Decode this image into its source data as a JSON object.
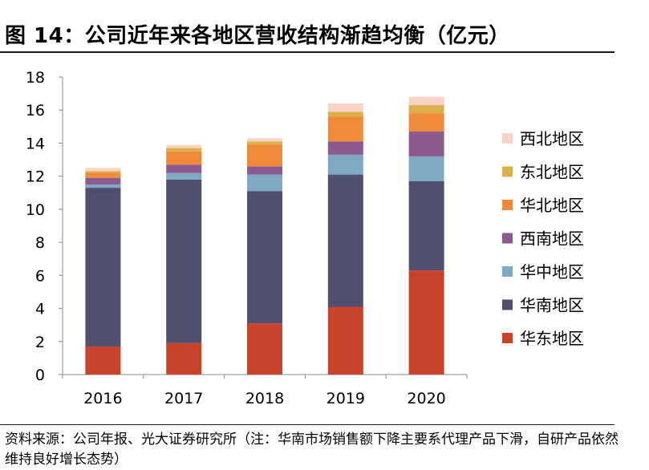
{
  "title": "图 14：公司近年来各地区营收结构渐趋均衡（亿元）",
  "source": "资料来源：公司年报、光大证券研究所（注：华南市场销售额下降主要系代理产品下滑，自研产品依然维持良好增长态势）",
  "chart_data": {
    "type": "bar",
    "stacked": true,
    "categories": [
      "2016",
      "2017",
      "2018",
      "2019",
      "2020"
    ],
    "ylim": [
      0,
      18
    ],
    "yticks": [
      0,
      2,
      4,
      6,
      8,
      10,
      12,
      14,
      16,
      18
    ],
    "legend_position": "right",
    "series": [
      {
        "name": "华东地区",
        "color": "#C9422A",
        "values": [
          1.7,
          1.9,
          3.1,
          4.1,
          6.3
        ]
      },
      {
        "name": "华南地区",
        "color": "#50506E",
        "values": [
          9.6,
          9.9,
          8.0,
          8.0,
          5.4
        ]
      },
      {
        "name": "华中地区",
        "color": "#7FA9C3",
        "values": [
          0.2,
          0.4,
          1.0,
          1.2,
          1.5
        ]
      },
      {
        "name": "西南地区",
        "color": "#8C5A8E",
        "values": [
          0.4,
          0.5,
          0.5,
          0.8,
          1.5
        ]
      },
      {
        "name": "华北地区",
        "color": "#F08A3A",
        "values": [
          0.3,
          0.8,
          1.3,
          1.5,
          1.1
        ]
      },
      {
        "name": "东北地区",
        "color": "#D9B04A",
        "values": [
          0.1,
          0.2,
          0.2,
          0.3,
          0.5
        ]
      },
      {
        "name": "西北地区",
        "color": "#FAD3C6",
        "values": [
          0.2,
          0.2,
          0.2,
          0.5,
          0.5
        ]
      }
    ]
  }
}
